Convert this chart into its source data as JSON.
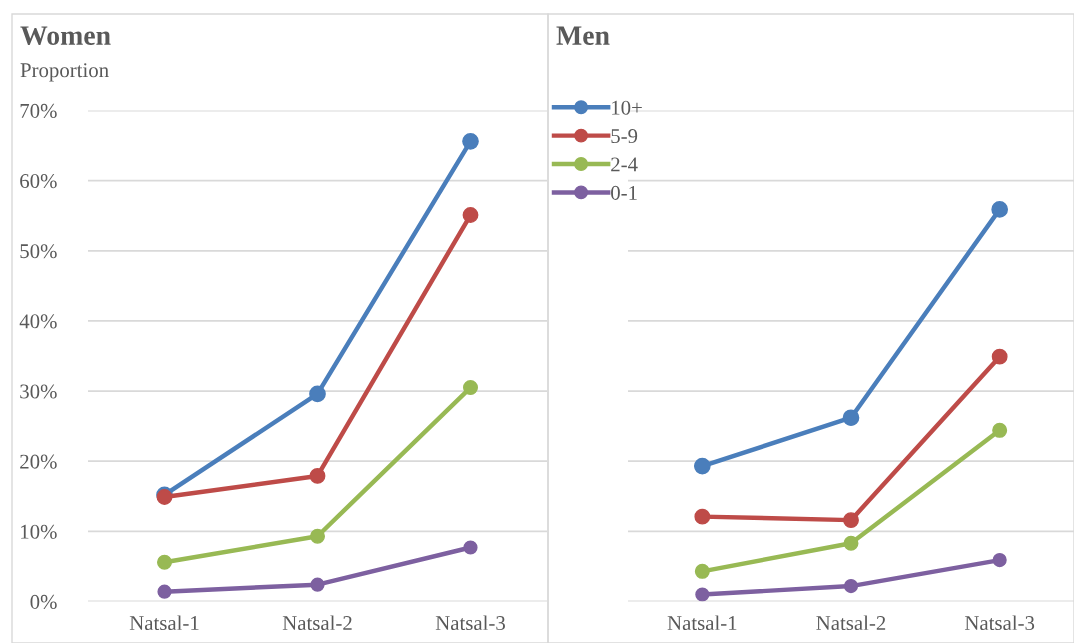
{
  "chart_data": [
    {
      "type": "line",
      "title": "Women",
      "ylabel": "Proportion",
      "categories": [
        "Natsal-1",
        "Natsal-2",
        "Natsal-3"
      ],
      "series": [
        {
          "color": "#4a7ebb",
          "values": [
            15.2,
            29.6,
            65.6
          ]
        },
        {
          "color": "#be4b48",
          "values": [
            14.9,
            17.9,
            55.1
          ]
        },
        {
          "color": "#98b954",
          "values": [
            5.6,
            9.3,
            30.5
          ]
        },
        {
          "color": "#7d60a0",
          "values": [
            1.4,
            2.4,
            7.7
          ]
        }
      ],
      "ylim": [
        0,
        70
      ],
      "yticks": [
        {
          "value": 0,
          "label": "0%"
        },
        {
          "value": 10,
          "label": "10%"
        },
        {
          "value": 20,
          "label": "20%"
        },
        {
          "value": 30,
          "label": "30%"
        },
        {
          "value": 40,
          "label": "40%"
        },
        {
          "value": 50,
          "label": "50%"
        },
        {
          "value": 60,
          "label": "60%"
        },
        {
          "value": 70,
          "label": "70%"
        }
      ],
      "grid": "y",
      "marker": "circle",
      "line_style": "solid"
    },
    {
      "type": "line",
      "title": "Men",
      "categories": [
        "Natsal-1",
        "Natsal-2",
        "Natsal-3"
      ],
      "series": [
        {
          "name": "10+",
          "color": "#4a7ebb",
          "values": [
            19.3,
            26.2,
            55.9
          ]
        },
        {
          "name": "5-9",
          "color": "#be4b48",
          "values": [
            12.1,
            11.6,
            34.9
          ]
        },
        {
          "name": "2-4",
          "color": "#98b954",
          "values": [
            4.3,
            8.3,
            24.4
          ]
        },
        {
          "name": "0-1",
          "color": "#7d60a0",
          "values": [
            1.0,
            2.2,
            5.9
          ]
        }
      ],
      "ylim": [
        0,
        70
      ],
      "yticks": [
        {
          "value": 0,
          "label": null
        },
        {
          "value": 10,
          "label": null
        },
        {
          "value": 20,
          "label": null
        },
        {
          "value": 30,
          "label": null
        },
        {
          "value": 40,
          "label": null
        },
        {
          "value": 50,
          "label": null
        },
        {
          "value": 60,
          "label": null
        },
        {
          "value": 70,
          "label": null
        }
      ],
      "tick_labels": "x",
      "grid": "y",
      "marker": "circle",
      "line_style": "solid",
      "legend": "top left"
    }
  ]
}
